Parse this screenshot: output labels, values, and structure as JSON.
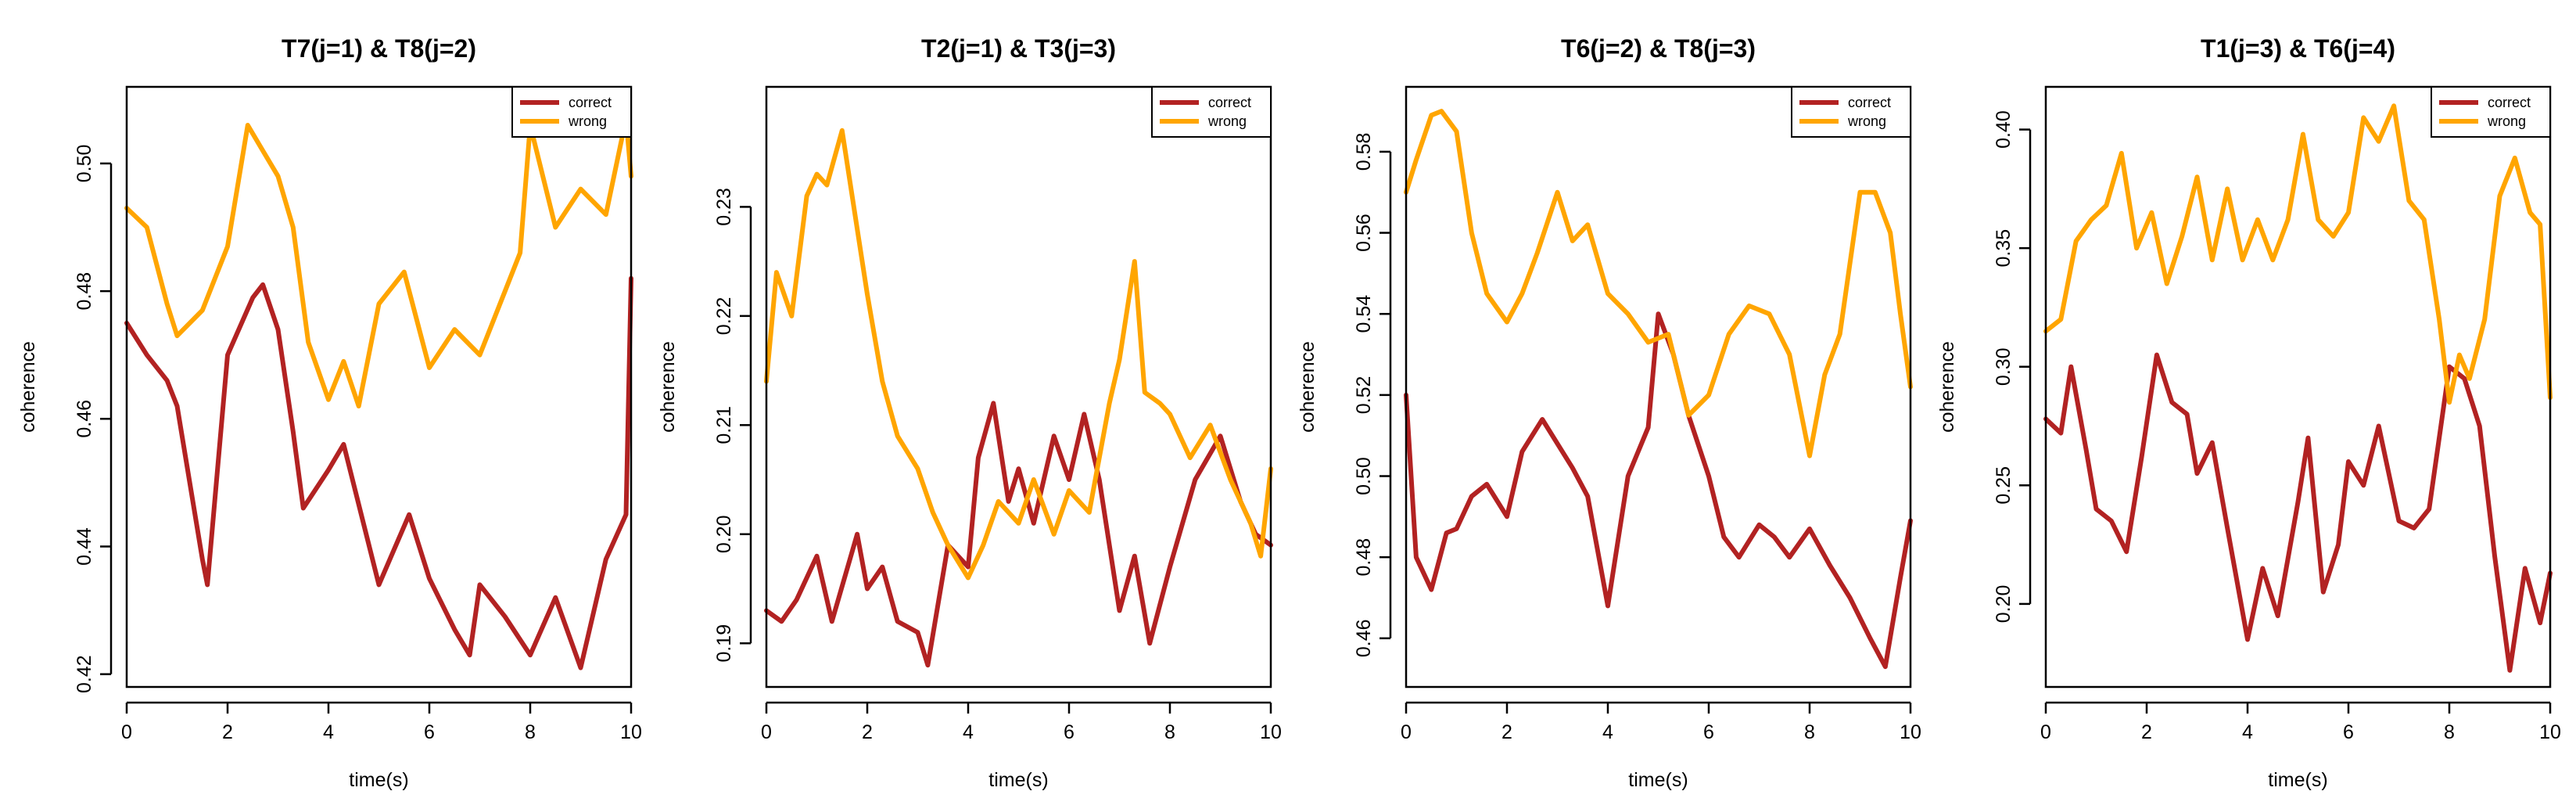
{
  "chart_data": [
    {
      "type": "line",
      "title": "T7(j=1) & T8(j=2)",
      "xlabel": "time(s)",
      "ylabel": "coherence",
      "xlim": [
        0,
        10
      ],
      "ylim": [
        0.418,
        0.512
      ],
      "xticks": [
        0,
        2,
        4,
        6,
        8,
        10
      ],
      "yticks": [
        0.42,
        0.44,
        0.46,
        0.48,
        0.5
      ],
      "xtick_labels": [
        "0",
        "2",
        "4",
        "6",
        "8",
        "10"
      ],
      "ytick_labels": [
        "0.42",
        "0.44",
        "0.46",
        "0.48",
        "0.50"
      ],
      "legend_position": "top-right",
      "series": [
        {
          "name": "correct",
          "color": "#b22222",
          "x": [
            0,
            0.4,
            0.8,
            1.0,
            1.5,
            1.6,
            2.0,
            2.5,
            2.7,
            3.0,
            3.3,
            3.5,
            4.0,
            4.3,
            5.0,
            5.6,
            6.0,
            6.5,
            6.8,
            7.0,
            7.5,
            8.0,
            8.5,
            9.0,
            9.5,
            9.9,
            10.0
          ],
          "y": [
            0.475,
            0.47,
            0.466,
            0.462,
            0.438,
            0.434,
            0.47,
            0.479,
            0.481,
            0.474,
            0.458,
            0.446,
            0.452,
            0.456,
            0.434,
            0.445,
            0.435,
            0.427,
            0.423,
            0.434,
            0.429,
            0.423,
            0.432,
            0.421,
            0.438,
            0.445,
            0.482
          ]
        },
        {
          "name": "wrong",
          "color": "#ffa500",
          "x": [
            0,
            0.4,
            0.8,
            1.0,
            1.5,
            2.0,
            2.4,
            2.7,
            3.0,
            3.3,
            3.6,
            4.0,
            4.3,
            4.6,
            5.0,
            5.5,
            6.0,
            6.5,
            7.0,
            7.5,
            7.8,
            8.0,
            8.5,
            9.0,
            9.5,
            9.9,
            10.0
          ],
          "y": [
            0.493,
            0.49,
            0.478,
            0.473,
            0.477,
            0.487,
            0.506,
            0.502,
            0.498,
            0.49,
            0.472,
            0.463,
            0.469,
            0.462,
            0.478,
            0.483,
            0.468,
            0.474,
            0.47,
            0.48,
            0.486,
            0.506,
            0.49,
            0.496,
            0.492,
            0.507,
            0.498
          ]
        }
      ]
    },
    {
      "type": "line",
      "title": "T2(j=1) & T3(j=3)",
      "xlabel": "time(s)",
      "ylabel": "coherence",
      "xlim": [
        0,
        10
      ],
      "ylim": [
        0.186,
        0.241
      ],
      "xticks": [
        0,
        2,
        4,
        6,
        8,
        10
      ],
      "yticks": [
        0.19,
        0.2,
        0.21,
        0.22,
        0.23
      ],
      "xtick_labels": [
        "0",
        "2",
        "4",
        "6",
        "8",
        "10"
      ],
      "ytick_labels": [
        "0.19",
        "0.20",
        "0.21",
        "0.22",
        "0.23"
      ],
      "legend_position": "top-right",
      "series": [
        {
          "name": "correct",
          "color": "#b22222",
          "x": [
            0,
            0.3,
            0.6,
            1.0,
            1.3,
            1.8,
            2.0,
            2.3,
            2.6,
            3.0,
            3.2,
            3.6,
            4.0,
            4.2,
            4.5,
            4.8,
            5.0,
            5.3,
            5.7,
            6.0,
            6.3,
            6.6,
            7.0,
            7.3,
            7.6,
            8.0,
            8.5,
            9.0,
            9.4,
            9.7,
            10.0
          ],
          "y": [
            0.193,
            0.192,
            0.194,
            0.198,
            0.192,
            0.2,
            0.195,
            0.197,
            0.192,
            0.191,
            0.188,
            0.199,
            0.197,
            0.207,
            0.212,
            0.203,
            0.206,
            0.201,
            0.209,
            0.205,
            0.211,
            0.205,
            0.193,
            0.198,
            0.19,
            0.197,
            0.205,
            0.209,
            0.203,
            0.2,
            0.199
          ]
        },
        {
          "name": "wrong",
          "color": "#ffa500",
          "x": [
            0,
            0.2,
            0.5,
            0.8,
            1.0,
            1.2,
            1.5,
            1.8,
            2.0,
            2.3,
            2.6,
            3.0,
            3.3,
            3.6,
            4.0,
            4.3,
            4.6,
            5.0,
            5.3,
            5.7,
            6.0,
            6.4,
            6.8,
            7.0,
            7.3,
            7.5,
            7.8,
            8.0,
            8.4,
            8.8,
            9.2,
            9.6,
            9.8,
            10.0
          ],
          "y": [
            0.214,
            0.224,
            0.22,
            0.231,
            0.233,
            0.232,
            0.237,
            0.228,
            0.222,
            0.214,
            0.209,
            0.206,
            0.202,
            0.199,
            0.196,
            0.199,
            0.203,
            0.201,
            0.205,
            0.2,
            0.204,
            0.202,
            0.212,
            0.216,
            0.225,
            0.213,
            0.212,
            0.211,
            0.207,
            0.21,
            0.205,
            0.201,
            0.198,
            0.206
          ]
        }
      ]
    },
    {
      "type": "line",
      "title": "T6(j=2) & T8(j=3)",
      "xlabel": "time(s)",
      "ylabel": "coherence",
      "xlim": [
        0,
        10
      ],
      "ylim": [
        0.448,
        0.596
      ],
      "xticks": [
        0,
        2,
        4,
        6,
        8,
        10
      ],
      "yticks": [
        0.46,
        0.48,
        0.5,
        0.52,
        0.54,
        0.56,
        0.58
      ],
      "xtick_labels": [
        "0",
        "2",
        "4",
        "6",
        "8",
        "10"
      ],
      "ytick_labels": [
        "0.46",
        "0.48",
        "0.50",
        "0.52",
        "0.54",
        "0.56",
        "0.58"
      ],
      "legend_position": "top-right",
      "series": [
        {
          "name": "correct",
          "color": "#b22222",
          "x": [
            0,
            0.2,
            0.5,
            0.8,
            1.0,
            1.3,
            1.6,
            2.0,
            2.3,
            2.7,
            3.0,
            3.3,
            3.6,
            4.0,
            4.4,
            4.8,
            5.0,
            5.3,
            5.6,
            6.0,
            6.3,
            6.6,
            7.0,
            7.3,
            7.6,
            8.0,
            8.4,
            8.8,
            9.2,
            9.5,
            9.8,
            10.0
          ],
          "y": [
            0.52,
            0.48,
            0.472,
            0.486,
            0.487,
            0.495,
            0.498,
            0.49,
            0.506,
            0.514,
            0.508,
            0.502,
            0.495,
            0.468,
            0.5,
            0.512,
            0.54,
            0.53,
            0.515,
            0.5,
            0.485,
            0.48,
            0.488,
            0.485,
            0.48,
            0.487,
            0.478,
            0.47,
            0.46,
            0.453,
            0.475,
            0.489
          ]
        },
        {
          "name": "wrong",
          "color": "#ffa500",
          "x": [
            0,
            0.2,
            0.5,
            0.7,
            1.0,
            1.3,
            1.6,
            2.0,
            2.3,
            2.6,
            3.0,
            3.3,
            3.6,
            4.0,
            4.4,
            4.8,
            5.2,
            5.6,
            6.0,
            6.4,
            6.8,
            7.2,
            7.6,
            8.0,
            8.3,
            8.6,
            9.0,
            9.3,
            9.6,
            9.8,
            10.0
          ],
          "y": [
            0.57,
            0.578,
            0.589,
            0.59,
            0.585,
            0.56,
            0.545,
            0.538,
            0.545,
            0.555,
            0.57,
            0.558,
            0.562,
            0.545,
            0.54,
            0.533,
            0.535,
            0.515,
            0.52,
            0.535,
            0.542,
            0.54,
            0.53,
            0.505,
            0.525,
            0.535,
            0.57,
            0.57,
            0.56,
            0.54,
            0.522
          ]
        }
      ]
    },
    {
      "type": "line",
      "title": "T1(j=3) & T6(j=4)",
      "xlabel": "time(s)",
      "ylabel": "coherence",
      "xlim": [
        0,
        10
      ],
      "ylim": [
        0.165,
        0.418
      ],
      "xticks": [
        0,
        2,
        4,
        6,
        8,
        10
      ],
      "yticks": [
        0.2,
        0.25,
        0.3,
        0.35,
        0.4
      ],
      "xtick_labels": [
        "0",
        "2",
        "4",
        "6",
        "8",
        "10"
      ],
      "ytick_labels": [
        "0.20",
        "0.25",
        "0.30",
        "0.35",
        "0.40"
      ],
      "legend_position": "top-right",
      "series": [
        {
          "name": "correct",
          "color": "#b22222",
          "x": [
            0,
            0.3,
            0.5,
            0.8,
            1.0,
            1.3,
            1.6,
            1.9,
            2.2,
            2.5,
            2.8,
            3.0,
            3.3,
            3.6,
            4.0,
            4.3,
            4.6,
            5.0,
            5.2,
            5.5,
            5.8,
            6.0,
            6.3,
            6.6,
            7.0,
            7.3,
            7.6,
            8.0,
            8.3,
            8.6,
            8.9,
            9.2,
            9.5,
            9.8,
            10.0
          ],
          "y": [
            0.278,
            0.272,
            0.3,
            0.265,
            0.24,
            0.235,
            0.222,
            0.262,
            0.305,
            0.285,
            0.28,
            0.255,
            0.268,
            0.232,
            0.185,
            0.215,
            0.195,
            0.243,
            0.27,
            0.205,
            0.225,
            0.26,
            0.25,
            0.275,
            0.235,
            0.232,
            0.24,
            0.3,
            0.295,
            0.275,
            0.22,
            0.172,
            0.215,
            0.192,
            0.213
          ]
        },
        {
          "name": "wrong",
          "color": "#ffa500",
          "x": [
            0,
            0.3,
            0.6,
            0.9,
            1.2,
            1.5,
            1.8,
            2.1,
            2.4,
            2.7,
            3.0,
            3.3,
            3.6,
            3.9,
            4.2,
            4.5,
            4.8,
            5.1,
            5.4,
            5.7,
            6.0,
            6.3,
            6.6,
            6.9,
            7.2,
            7.5,
            7.8,
            8.0,
            8.2,
            8.4,
            8.7,
            9.0,
            9.3,
            9.6,
            9.8,
            10.0
          ],
          "y": [
            0.315,
            0.32,
            0.353,
            0.362,
            0.368,
            0.39,
            0.35,
            0.365,
            0.335,
            0.355,
            0.38,
            0.345,
            0.375,
            0.345,
            0.362,
            0.345,
            0.362,
            0.398,
            0.362,
            0.355,
            0.365,
            0.405,
            0.395,
            0.41,
            0.37,
            0.362,
            0.32,
            0.285,
            0.305,
            0.295,
            0.32,
            0.372,
            0.388,
            0.365,
            0.36,
            0.287
          ]
        }
      ]
    }
  ]
}
